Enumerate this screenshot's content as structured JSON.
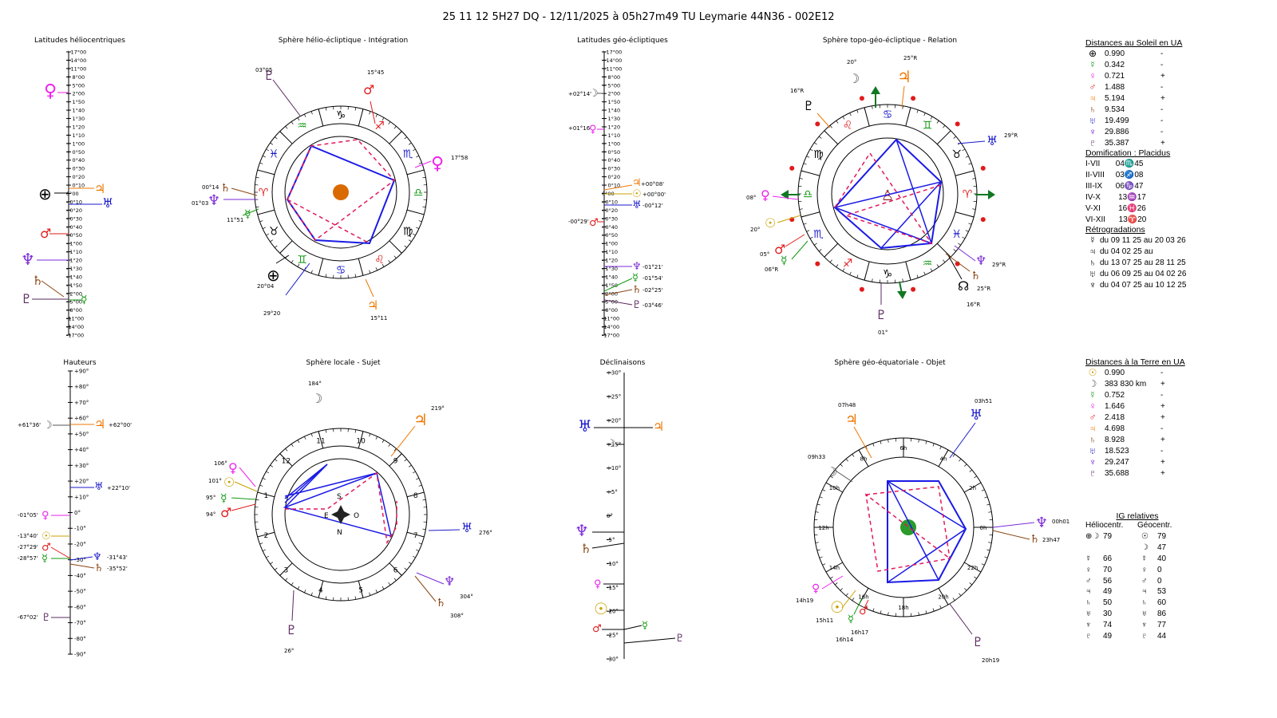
{
  "header": {
    "title": "25 11 12 5H27 DQ   -  12/11/2025 à 05h27m49 TU  Leymarie  44N36 - 002E12"
  },
  "colors": {
    "sun": "#c8a000",
    "moon": "#555555",
    "mercury": "#119911",
    "venus": "#ee22ee",
    "mars": "#e21a1a",
    "jupiter": "#ee7700",
    "saturn": "#8b4513",
    "uranus": "#1a1acc",
    "neptune": "#7a2bd8",
    "pluto": "#5a2860",
    "earth": "#000000",
    "chart": "#1a1ae6",
    "dash": "#e2185a"
  },
  "panels": {
    "helio_lat": "Latitudes héliocentriques",
    "helio_sphere": "Sphère hélio-écliptique - Intégration",
    "geo_lat": "Latitudes géo-écliptiques",
    "topo_sphere": "Sphère topo-géo-écliptique - Relation",
    "heights": "Hauteurs",
    "local_sphere": "Sphère locale - Sujet",
    "decl": "Déclinaisons",
    "equat_sphere": "Sphère géo-équatoriale - Objet"
  },
  "lat_scale": [
    "+17°00",
    "+14°00",
    "+11°00",
    "+ 8°00",
    "+ 5°00",
    "+ 2°00",
    "+ 1°50",
    "+ 1°40",
    "+ 1°30",
    "+ 1°20",
    "+ 1°10",
    "+ 1°00",
    "+ 0°50",
    "+ 0°40",
    "+ 0°30",
    "+ 0°20",
    "+ 0°10",
    "0°00",
    "- 0°10",
    "- 0°20",
    "- 0°30",
    "- 0°40",
    "- 0°50",
    "- 1°00",
    "- 1°10",
    "- 1°20",
    "- 1°30",
    "- 1°40",
    "- 1°50",
    "- 2°00",
    "- 5°00",
    "- 8°00",
    "-11°00",
    "-14°00",
    "-17°00"
  ],
  "geo_lat_labels": {
    "moon": "+02°14'",
    "venus": "+01°16'",
    "jupiter": "+00°08'",
    "sun": "+00°00'",
    "uranus": "-00°12'",
    "mars": "-00°29'",
    "neptune": "-01°21'",
    "mercury": "-01°54'",
    "saturn": "-02°25'",
    "pluto": "-03°46'",
    "zero": "0°00"
  },
  "helio_sphere": {
    "mars": "15°45",
    "pluto": "03°05",
    "venus": "17°58",
    "saturn": "00°14",
    "neptune": "01°03",
    "mercury": "11°51",
    "earth": "20°04",
    "uranus": "29°20",
    "jupiter": "15°11"
  },
  "topo_sphere": {
    "moon": "20°",
    "jupiter": "25°R",
    "pluto_top": "16°R",
    "uranus": "29°R",
    "venus": "08°",
    "sun": "20°",
    "mars": "05°",
    "mercury": "06°R",
    "neptune": "29°R",
    "node": "25°R",
    "saturn": "16°R",
    "pluto": "01°"
  },
  "height_scale": [
    "+90°",
    "+80°",
    "+70°",
    "+60°",
    "+50°",
    "+40°",
    "+30°",
    "+20°",
    "+10°",
    "0°",
    "-10°",
    "-20°",
    "-30°",
    "-40°",
    "-50°",
    "-60°",
    "-70°",
    "-80°",
    "-90°"
  ],
  "heights": {
    "moon": "+61°36'",
    "jupiter": "+62°00'",
    "uranus": "+22°10'",
    "venus": "-01°05'",
    "sun": "-13°40'",
    "mars": "-27°29'",
    "mercury": "-28°57'",
    "neptune": "-31°43'",
    "saturn": "-35°52'",
    "pluto": "-67°02'"
  },
  "local_sphere": {
    "moon": "184°",
    "jupiter": "219°",
    "venus": "106°",
    "sun": "101°",
    "mercury": "95°",
    "mars": "94°",
    "uranus": "276°",
    "neptune": "304°",
    "saturn": "308°",
    "pluto": "26°",
    "S": "S",
    "E": "E",
    "O": "O",
    "N": "N",
    "houses": [
      "10",
      "9",
      "8",
      "7",
      "6",
      "5",
      "4",
      "3",
      "2",
      "1",
      "12",
      "11"
    ]
  },
  "decl_scale": [
    "+30°",
    "+25°",
    "+20°",
    "+15°",
    "+10°",
    "+5°",
    "0°",
    "-5°",
    "-10°",
    "-15°",
    "-20°",
    "-25°",
    "-30°"
  ],
  "equat_sphere": {
    "jupiter": "07h48",
    "uranus": "03h51",
    "moon": "09h33",
    "neptune": "00h01",
    "saturn": "23h47",
    "venus": "14h19",
    "sun": "15h11",
    "mercury": "16h14",
    "mars": "16h17",
    "pluto": "20h19",
    "hours": [
      "0h",
      "2h",
      "4h",
      "6h",
      "8h",
      "10h",
      "12h",
      "14h",
      "16h",
      "18h",
      "20h",
      "22h"
    ]
  },
  "sun_dist": {
    "title": "Distances au Soleil en UA",
    "rows": [
      {
        "g": "⊕",
        "c": "earth",
        "v": "0.990",
        "s": "-"
      },
      {
        "g": "☿",
        "c": "mercury",
        "v": "0.342",
        "s": "-"
      },
      {
        "g": "♀",
        "c": "venus",
        "v": "0.721",
        "s": "+"
      },
      {
        "g": "♂",
        "c": "mars",
        "v": "1.488",
        "s": "-"
      },
      {
        "g": "♃",
        "c": "jupiter",
        "v": "5.194",
        "s": "+"
      },
      {
        "g": "♄",
        "c": "saturn",
        "v": "9.534",
        "s": "-"
      },
      {
        "g": "♅",
        "c": "uranus",
        "v": "19.499",
        "s": "-"
      },
      {
        "g": "♆",
        "c": "neptune",
        "v": "29.886",
        "s": "-"
      },
      {
        "g": "♇",
        "c": "pluto",
        "v": "35.387",
        "s": "+"
      }
    ]
  },
  "domif": {
    "title": "Domification : Placidus",
    "rows": [
      "I-VII       04♏45",
      "II-VIII     03♐08",
      "III-IX      06♑47",
      "IV-X        13♒17",
      "V-XI        16♓26",
      "VI-XII      13♈20"
    ]
  },
  "retro": {
    "title": "Rétrogradations",
    "rows": [
      {
        "g": "☿",
        "t": "du 09 11 25 au 20 03 26"
      },
      {
        "g": "♃",
        "t": "du 04 02 25 au"
      },
      {
        "g": "♄",
        "t": "du 13 07 25 au 28 11 25"
      },
      {
        "g": "♅",
        "t": "du 06 09 25 au 04 02 26"
      },
      {
        "g": "♆",
        "t": "du 04 07 25 au 10 12 25"
      }
    ]
  },
  "earth_dist": {
    "title": "Distances à la Terre en UA",
    "rows": [
      {
        "g": "☉",
        "c": "sun",
        "v": "0.990",
        "s": "-"
      },
      {
        "g": "☽",
        "c": "moon",
        "v": "383 830 km",
        "s": "+"
      },
      {
        "g": "☿",
        "c": "mercury",
        "v": "0.752",
        "s": "-"
      },
      {
        "g": "♀",
        "c": "venus",
        "v": "1.646",
        "s": "+"
      },
      {
        "g": "♂",
        "c": "mars",
        "v": "2.418",
        "s": "+"
      },
      {
        "g": "♃",
        "c": "jupiter",
        "v": "4.698",
        "s": "-"
      },
      {
        "g": "♄",
        "c": "saturn",
        "v": "8.928",
        "s": "+"
      },
      {
        "g": "♅",
        "c": "uranus",
        "v": "18.523",
        "s": "-"
      },
      {
        "g": "♆",
        "c": "neptune",
        "v": "29.247",
        "s": "+"
      },
      {
        "g": "♇",
        "c": "pluto",
        "v": "35.688",
        "s": "+"
      }
    ]
  },
  "ig": {
    "title": "IG relatives",
    "col1": "Héliocentr.",
    "col2": "Géocentr.",
    "rows": [
      {
        "g1": "⊕☽",
        "v1": "79",
        "g2": "☉",
        "v2": "79"
      },
      {
        "g1": "",
        "v1": "",
        "g2": "☽",
        "v2": "47"
      },
      {
        "g1": "☿",
        "v1": "66",
        "g2": "☿",
        "v2": "40"
      },
      {
        "g1": "♀",
        "v1": "70",
        "g2": "♀",
        "v2": "0"
      },
      {
        "g1": "♂",
        "v1": "56",
        "g2": "♂",
        "v2": "0"
      },
      {
        "g1": "♃",
        "v1": "49",
        "g2": "♃",
        "v2": "53"
      },
      {
        "g1": "♄",
        "v1": "50",
        "g2": "♄",
        "v2": "60"
      },
      {
        "g1": "♅",
        "v1": "30",
        "g2": "♅",
        "v2": "86"
      },
      {
        "g1": "♆",
        "v1": "74",
        "g2": "♆",
        "v2": "77"
      },
      {
        "g1": "♇",
        "v1": "49",
        "g2": "♇",
        "v2": "44"
      }
    ]
  }
}
